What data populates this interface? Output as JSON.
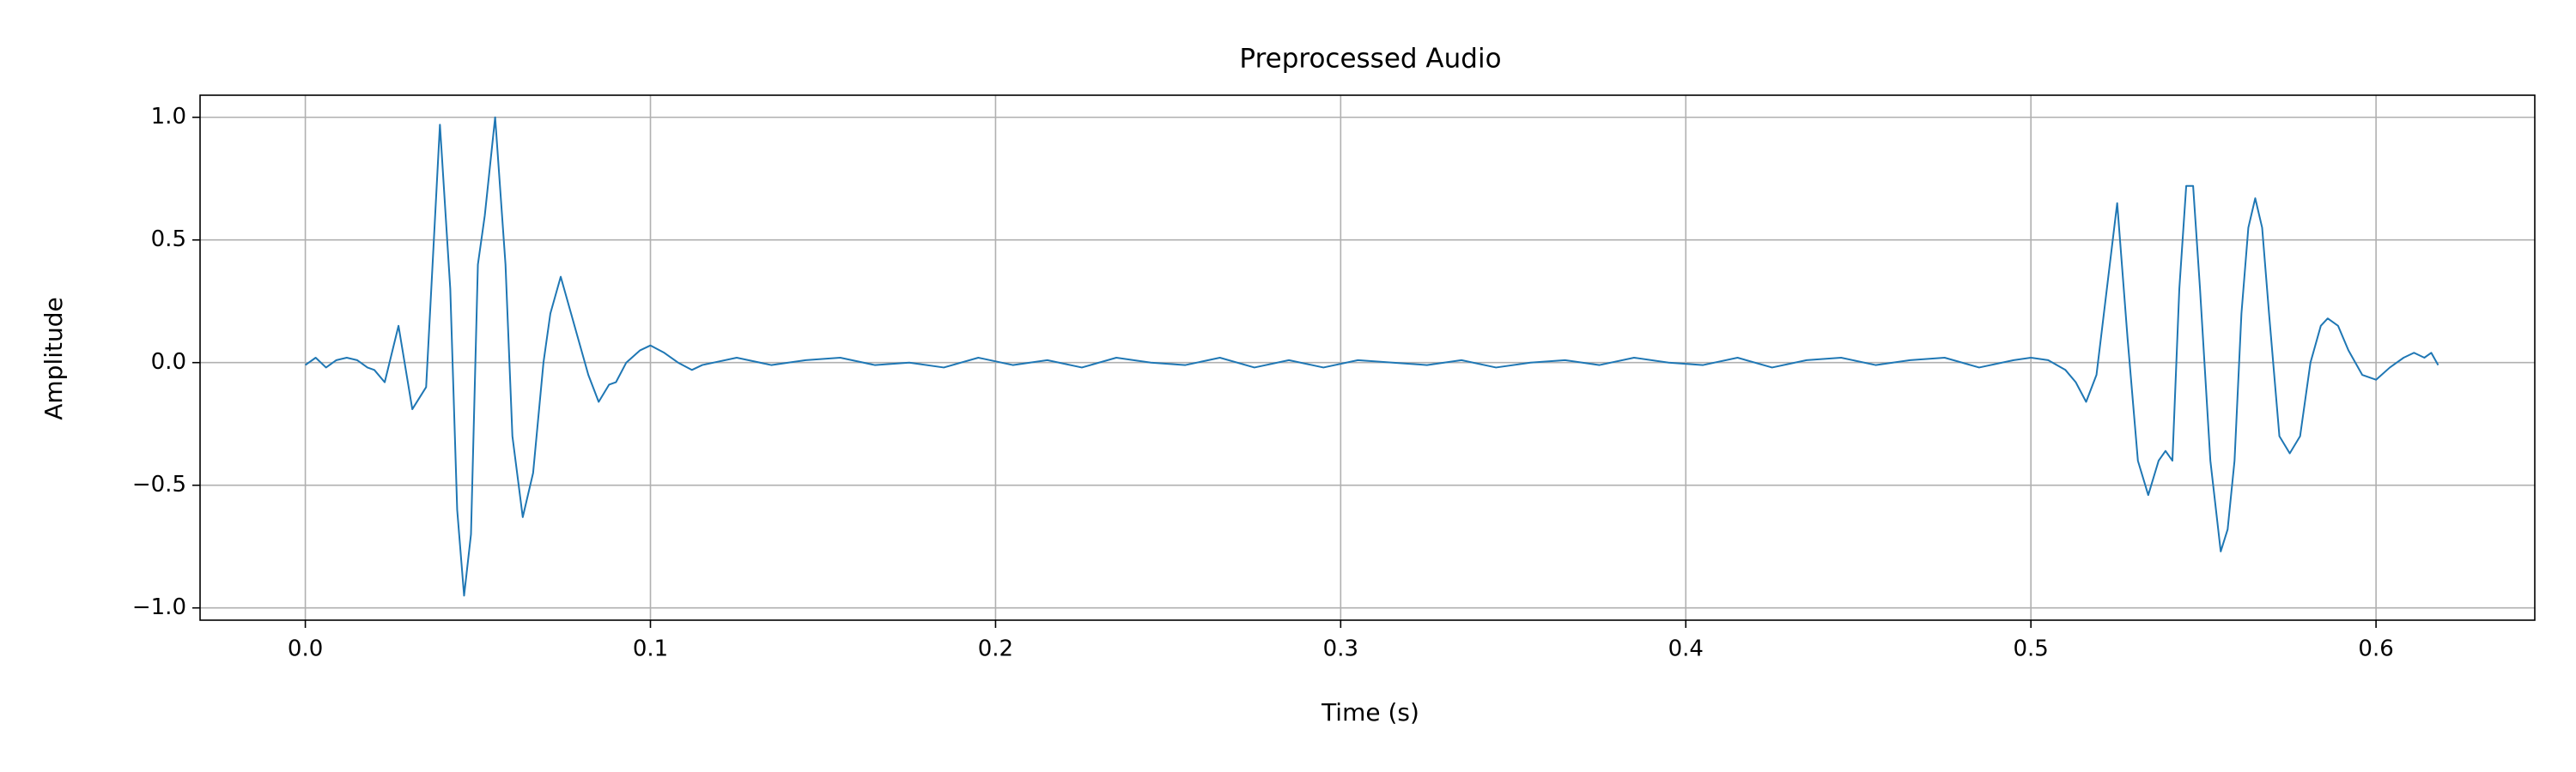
{
  "chart_data": {
    "type": "line",
    "title": "Preprocessed Audio",
    "x_label": "Time (s)",
    "y_label": "Amplitude",
    "color": "#1f77b4",
    "grid": true,
    "xlim": [
      -0.0305,
      0.646
    ],
    "ylim": [
      -1.05,
      1.09
    ],
    "xticks": [
      {
        "value": 0,
        "label": "0.0"
      },
      {
        "value": 0.1,
        "label": "0.1"
      },
      {
        "value": 0.2,
        "label": "0.2"
      },
      {
        "value": 0.3,
        "label": "0.3"
      },
      {
        "value": 0.4,
        "label": "0.4"
      },
      {
        "value": 0.5,
        "label": "0.5"
      },
      {
        "value": 0.6,
        "label": "0.6"
      }
    ],
    "yticks": [
      {
        "value": -1,
        "label": "−1.0"
      },
      {
        "value": -0.5,
        "label": "−0.5"
      },
      {
        "value": 0,
        "label": "0.0"
      },
      {
        "value": 0.5,
        "label": "0.5"
      },
      {
        "value": 1,
        "label": "1.0"
      }
    ],
    "x": [
      0,
      0.003,
      0.006,
      0.009,
      0.012,
      0.015,
      0.018,
      0.02,
      0.023,
      0.027,
      0.031,
      0.035,
      0.039,
      0.042,
      0.044,
      0.046,
      0.048,
      0.05,
      0.052,
      0.055,
      0.058,
      0.06,
      0.063,
      0.066,
      0.069,
      0.071,
      0.074,
      0.077,
      0.079,
      0.082,
      0.085,
      0.088,
      0.09,
      0.093,
      0.097,
      0.1,
      0.104,
      0.108,
      0.112,
      0.115,
      0.125,
      0.135,
      0.145,
      0.155,
      0.165,
      0.175,
      0.185,
      0.195,
      0.205,
      0.215,
      0.225,
      0.235,
      0.245,
      0.255,
      0.265,
      0.275,
      0.285,
      0.295,
      0.305,
      0.315,
      0.325,
      0.335,
      0.345,
      0.355,
      0.365,
      0.375,
      0.385,
      0.395,
      0.405,
      0.415,
      0.425,
      0.435,
      0.445,
      0.455,
      0.465,
      0.475,
      0.485,
      0.495,
      0.5,
      0.505,
      0.51,
      0.513,
      0.516,
      0.519,
      0.522,
      0.525,
      0.528,
      0.531,
      0.534,
      0.537,
      0.539,
      0.541,
      0.543,
      0.545,
      0.547,
      0.549,
      0.552,
      0.555,
      0.557,
      0.559,
      0.561,
      0.563,
      0.565,
      0.567,
      0.569,
      0.572,
      0.575,
      0.578,
      0.581,
      0.584,
      0.586,
      0.589,
      0.592,
      0.596,
      0.6,
      0.604,
      0.608,
      0.611,
      0.614,
      0.616,
      0.618
    ],
    "values": [
      -0.01,
      0.02,
      -0.02,
      0.01,
      0.02,
      0.01,
      -0.02,
      -0.03,
      -0.08,
      0.15,
      -0.19,
      -0.1,
      0.97,
      0.3,
      -0.6,
      -0.95,
      -0.7,
      0.4,
      0.6,
      1.0,
      0.4,
      -0.3,
      -0.63,
      -0.45,
      0.0,
      0.2,
      0.35,
      0.2,
      0.1,
      -0.05,
      -0.16,
      -0.09,
      -0.08,
      0.0,
      0.05,
      0.07,
      0.04,
      0.0,
      -0.03,
      -0.01,
      0.02,
      -0.01,
      0.01,
      0.02,
      -0.01,
      0.0,
      -0.02,
      0.02,
      -0.01,
      0.01,
      -0.02,
      0.02,
      0.0,
      -0.01,
      0.02,
      -0.02,
      0.01,
      -0.02,
      0.01,
      0.0,
      -0.01,
      0.01,
      -0.02,
      0.0,
      0.01,
      -0.01,
      0.02,
      0.0,
      -0.01,
      0.02,
      -0.02,
      0.01,
      0.02,
      -0.01,
      0.01,
      0.02,
      -0.02,
      0.01,
      0.02,
      0.01,
      -0.03,
      -0.08,
      -0.16,
      -0.05,
      0.3,
      0.65,
      0.1,
      -0.4,
      -0.54,
      -0.4,
      -0.36,
      -0.4,
      0.3,
      0.72,
      0.72,
      0.3,
      -0.4,
      -0.77,
      -0.68,
      -0.4,
      0.2,
      0.55,
      0.67,
      0.55,
      0.2,
      -0.3,
      -0.37,
      -0.3,
      0.0,
      0.15,
      0.18,
      0.15,
      0.05,
      -0.05,
      -0.07,
      -0.02,
      0.02,
      0.04,
      0.02,
      0.04,
      -0.01
    ]
  }
}
